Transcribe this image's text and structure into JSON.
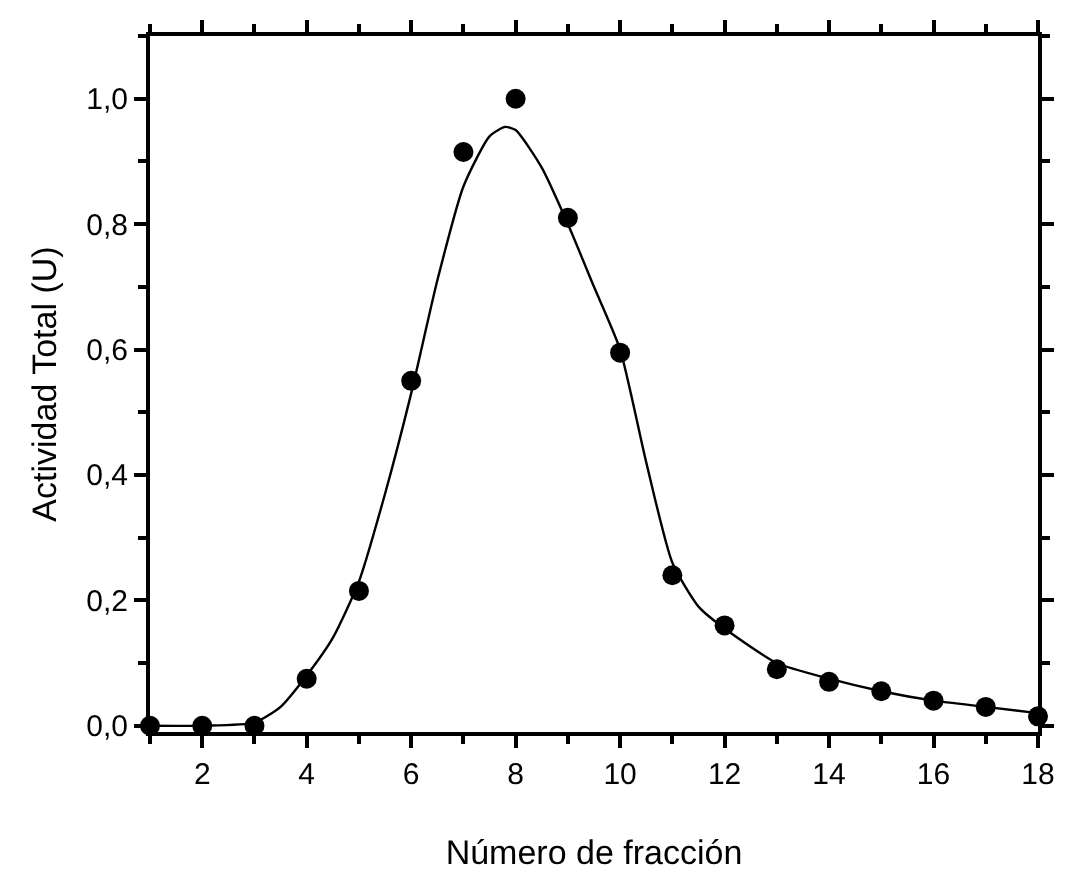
{
  "chart_data": {
    "type": "scatter",
    "xlabel": "Número de fracción",
    "ylabel": "Actividad Total (U)",
    "xlim": [
      1,
      18
    ],
    "xticks": [
      2,
      4,
      6,
      8,
      10,
      12,
      14,
      16,
      18
    ],
    "ylim": [
      -0.01,
      1.1
    ],
    "yticks": [
      {
        "value": 0,
        "label": "0,0"
      },
      {
        "value": 0.2,
        "label": "0,2"
      },
      {
        "value": 0.4,
        "label": "0,4"
      },
      {
        "value": 0.6,
        "label": "0,6"
      },
      {
        "value": 0.8,
        "label": "0,8"
      },
      {
        "value": 1.0,
        "label": "1,0"
      }
    ],
    "legend": false,
    "series": [
      {
        "marker": "circle",
        "color": "#000000",
        "x": [
          1,
          2,
          3,
          4,
          5,
          6,
          7,
          8,
          9,
          10,
          11,
          12,
          13,
          14,
          15,
          16,
          17,
          18
        ],
        "values": [
          0.0,
          0.0,
          0.0,
          0.075,
          0.215,
          0.55,
          0.915,
          1.0,
          0.81,
          0.595,
          0.24,
          0.16,
          0.09,
          0.07,
          0.055,
          0.04,
          0.03,
          0.015
        ]
      },
      {
        "type": "line",
        "line_style": "solid",
        "color": "#000000",
        "x": [
          1,
          2,
          3,
          3.5,
          4,
          4.5,
          5,
          5.5,
          6,
          6.5,
          7,
          7.5,
          7.8,
          8,
          8.5,
          9,
          9.5,
          10,
          10.5,
          11,
          11.5,
          12,
          13,
          14,
          15,
          16,
          17,
          18
        ],
        "values": [
          0.0,
          0.0,
          0.005,
          0.03,
          0.08,
          0.14,
          0.23,
          0.37,
          0.53,
          0.71,
          0.86,
          0.94,
          0.955,
          0.95,
          0.89,
          0.8,
          0.7,
          0.6,
          0.42,
          0.26,
          0.19,
          0.155,
          0.1,
          0.075,
          0.055,
          0.04,
          0.03,
          0.02
        ]
      }
    ]
  }
}
